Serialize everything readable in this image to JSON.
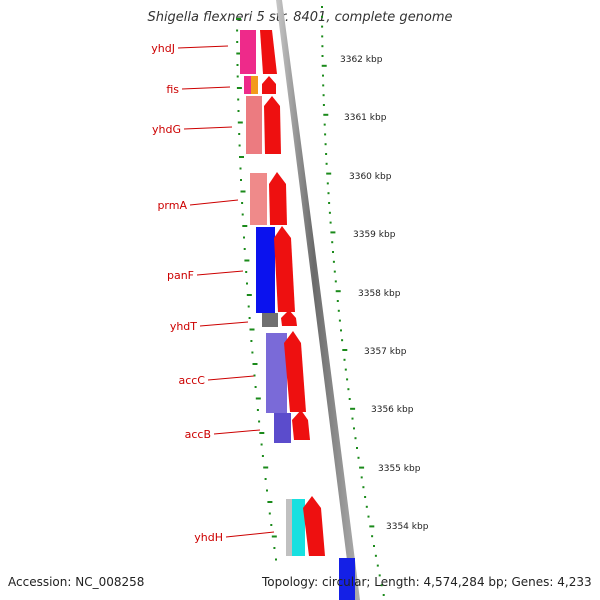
{
  "title": "Shigella flexneri 5 str. 8401, complete genome",
  "footer": {
    "accession": "Accession: NC_008258",
    "stats": "Topology: circular; Length: 4,574,284 bp; Genes: 4,233"
  },
  "genes": [
    {
      "name": "yhdJ"
    },
    {
      "name": "fis"
    },
    {
      "name": "yhdG"
    },
    {
      "name": "prmA"
    },
    {
      "name": "panF"
    },
    {
      "name": "yhdT"
    },
    {
      "name": "accC"
    },
    {
      "name": "accB"
    },
    {
      "name": "yhdH"
    }
  ],
  "ticks": [
    {
      "label": "3362 kbp"
    },
    {
      "label": "3361 kbp"
    },
    {
      "label": "3360 kbp"
    },
    {
      "label": "3359 kbp"
    },
    {
      "label": "3358 kbp"
    },
    {
      "label": "3357 kbp"
    },
    {
      "label": "3356 kbp"
    },
    {
      "label": "3355 kbp"
    },
    {
      "label": "3354 kbp"
    }
  ],
  "colors": {
    "label_red": "#cc0000",
    "tick_green": "#1a8a1a",
    "backbone": "#808080"
  }
}
